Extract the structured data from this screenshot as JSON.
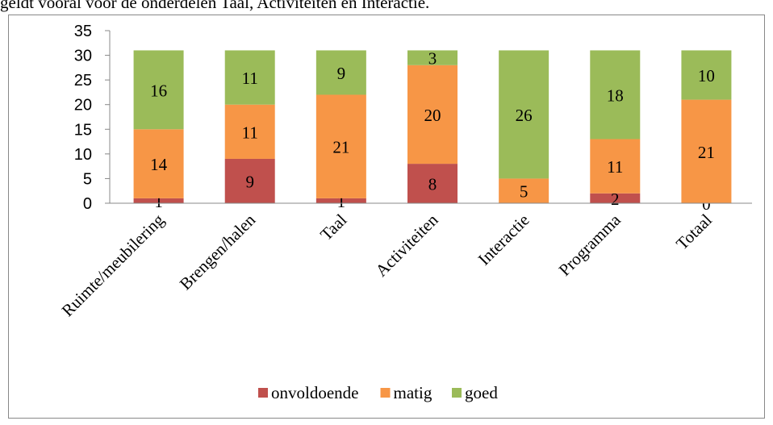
{
  "text_above": "geldt vooral voor de onderdelen Taal, Activiteiten en Interactie.",
  "chart_data": {
    "type": "stacked_bar",
    "categories": [
      "Ruimte/meubilering",
      "Brengen/halen",
      "Taal",
      "Activiteiten",
      "Interactie",
      "Programma",
      "Totaal"
    ],
    "series": [
      {
        "name": "onvoldoende",
        "color": "#c0504d",
        "values": [
          1,
          9,
          1,
          8,
          0,
          2,
          0
        ],
        "value_labels": [
          "1",
          "9",
          "1",
          "8",
          null,
          "2",
          "0"
        ]
      },
      {
        "name": "matig",
        "color": "#f79646",
        "values": [
          14,
          11,
          21,
          20,
          5,
          11,
          21
        ]
      },
      {
        "name": "goed",
        "color": "#9bbb59",
        "values": [
          16,
          11,
          9,
          3,
          26,
          18,
          10
        ]
      }
    ],
    "ylim": [
      0,
      35
    ],
    "yticks": [
      0,
      5,
      10,
      15,
      20,
      25,
      30,
      35
    ],
    "grid": false,
    "legend": "bottom"
  }
}
